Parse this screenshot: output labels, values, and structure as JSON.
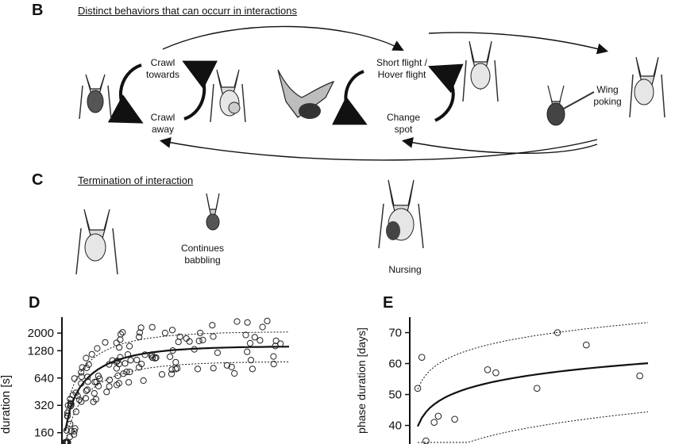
{
  "panel_b": {
    "letter": "B",
    "heading": "Distinct behaviors that can occurr in interactions",
    "labels": {
      "crawl_towards": [
        "Crawl",
        "towards"
      ],
      "crawl_away": [
        "Crawl",
        "away"
      ],
      "short_flight": [
        "Short flight /",
        "Hover flight"
      ],
      "change_spot": [
        "Change",
        "spot"
      ],
      "wing_poking": [
        "Wing",
        "poking"
      ]
    }
  },
  "panel_c": {
    "letter": "C",
    "heading": "Termination of interaction",
    "labels": {
      "continues_babbling": [
        "Continues",
        "babbling"
      ],
      "nursing": "Nursing"
    }
  },
  "chart_data": [
    {
      "panel": "D",
      "type": "scatter",
      "ylabel": "duration [s]",
      "yscale": "log",
      "ytick_labels": [
        "2000",
        "1280",
        "640",
        "320",
        "160"
      ],
      "ytick_values": [
        2000,
        1280,
        640,
        320,
        160
      ],
      "ylim": [
        120,
        3000
      ],
      "grid": false,
      "fit_line": true,
      "confidence_band": true
    },
    {
      "panel": "E",
      "type": "scatter",
      "ylabel": "phase duration [days]",
      "ytick_labels": [
        "70",
        "60",
        "50",
        "40"
      ],
      "ytick_values": [
        70,
        60,
        50,
        40
      ],
      "ylim": [
        34,
        75
      ],
      "grid": false,
      "fit_line": true,
      "confidence_band": true,
      "points": [
        {
          "x": 1,
          "y": 52
        },
        {
          "x": 2,
          "y": 62
        },
        {
          "x": 3,
          "y": 35
        },
        {
          "x": 5,
          "y": 41
        },
        {
          "x": 6,
          "y": 43
        },
        {
          "x": 10,
          "y": 42
        },
        {
          "x": 18,
          "y": 58
        },
        {
          "x": 20,
          "y": 57
        },
        {
          "x": 30,
          "y": 52
        },
        {
          "x": 35,
          "y": 70
        },
        {
          "x": 42,
          "y": 66
        },
        {
          "x": 55,
          "y": 56
        }
      ]
    }
  ]
}
